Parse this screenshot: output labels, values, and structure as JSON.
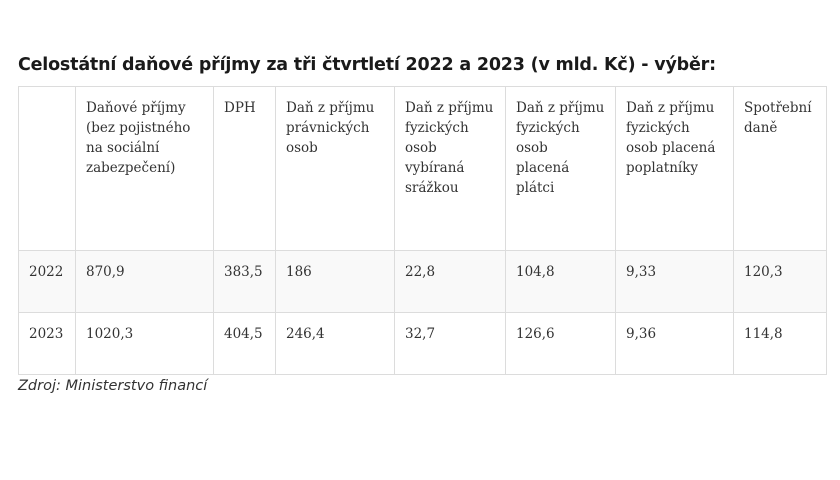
{
  "title": "Celostátní daňové příjmy za tři čtvrtletí 2022 a 2023 (v mld. Kč) - výběr:",
  "table": {
    "headers": [
      "",
      "Daňové příjmy (bez pojistného na sociální zabezpečení)",
      "DPH",
      "Daň z příjmu právnických osob",
      "Daň z příjmu fyzických osob vybíraná srážkou",
      "Daň z příjmu fyzických osob placená plátci",
      "Daň z příjmu fyzických osob placená poplatníky",
      "Spotřební daně"
    ],
    "rows": [
      [
        "2022",
        "870,9",
        "383,5",
        "186",
        "22,8",
        "104,8",
        "9,33",
        "120,3"
      ],
      [
        "2023",
        "1020,3",
        "404,5",
        "246,4",
        "32,7",
        "126,6",
        "9,36",
        "114,8"
      ]
    ]
  },
  "source": "Zdroj: Ministerstvo financí"
}
